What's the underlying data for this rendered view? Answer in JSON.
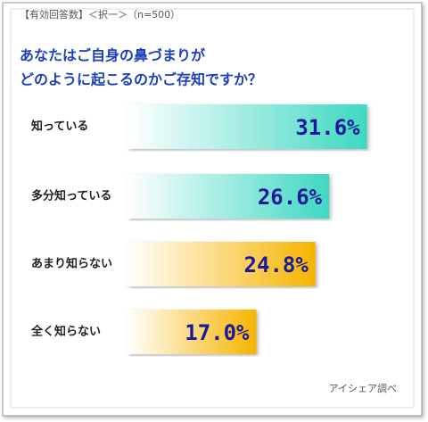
{
  "chart_data": {
    "type": "bar",
    "orientation": "horizontal",
    "header": "【有効回答数】＜択一＞（n=500）",
    "title": [
      "あなたはご自身の鼻づまりが",
      "どのように起こるのかご存知ですか？"
    ],
    "categories": [
      "知っている",
      "多分知っている",
      "あまり知らない",
      "全く知らない"
    ],
    "values": [
      31.6,
      26.6,
      24.8,
      17.0
    ],
    "value_labels": [
      "31.6%",
      "26.6%",
      "24.8%",
      "17.0%"
    ],
    "colors": [
      "#3fd8c2",
      "#3fd8c2",
      "#f6b400",
      "#f6b400"
    ],
    "source": "アイシェア調べ"
  }
}
